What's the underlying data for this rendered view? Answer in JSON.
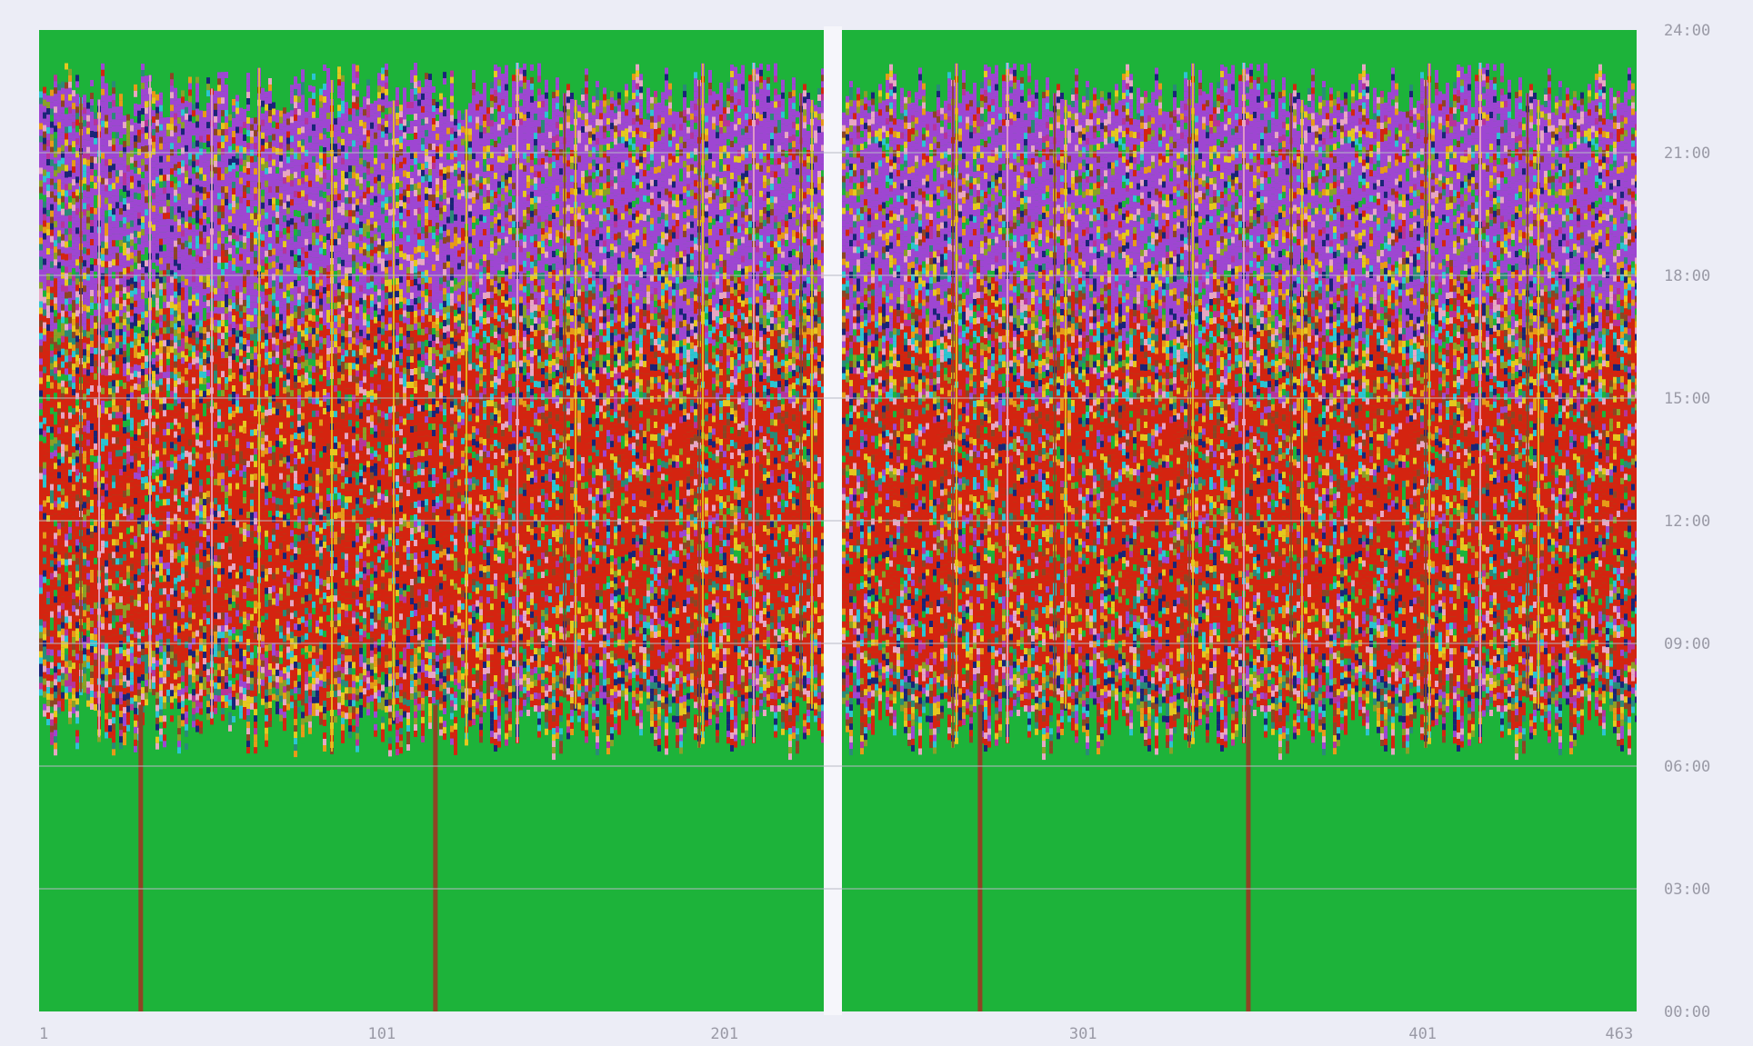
{
  "chart_data": {
    "type": "heatmap",
    "title": "",
    "xlabel": "",
    "ylabel": "",
    "x_range": [
      1,
      463
    ],
    "y_range_hours": [
      0,
      24
    ],
    "x_ticks": [
      "1",
      "101",
      "201",
      "301",
      "401",
      "463"
    ],
    "y_ticks": [
      "00:00",
      "03:00",
      "06:00",
      "09:00",
      "12:00",
      "15:00",
      "18:00",
      "21:00",
      "24:00"
    ],
    "panel_break_after_column": 229,
    "grid": true,
    "legend": "none",
    "colors": {
      "background": "#ecedf6",
      "sleep_green": "#1db33a",
      "red": "#d42410",
      "purple": "#9e46d2",
      "magenta": "#b8339b",
      "pink": "#e8a6c4",
      "yellow": "#e6c81e",
      "orange": "#e89a18",
      "navy": "#1a2478",
      "cyan": "#2cc4d2",
      "teal": "#2a8a78",
      "olive": "#8aa028",
      "brown": "#8e4424",
      "gridline": "#b9bac6",
      "tick_label": "#9a9aa6"
    },
    "category_bands_by_hour": [
      {
        "hours": [
          0,
          6.5
        ],
        "dominant": "sleep_green"
      },
      {
        "hours": [
          6.5,
          8
        ],
        "dominant": "mixed"
      },
      {
        "hours": [
          8,
          15
        ],
        "dominant": "red"
      },
      {
        "hours": [
          15,
          18
        ],
        "dominant": "mixed"
      },
      {
        "hours": [
          18,
          22
        ],
        "dominant": "purple"
      },
      {
        "hours": [
          22,
          24
        ],
        "dominant": "sleep_green"
      }
    ]
  }
}
